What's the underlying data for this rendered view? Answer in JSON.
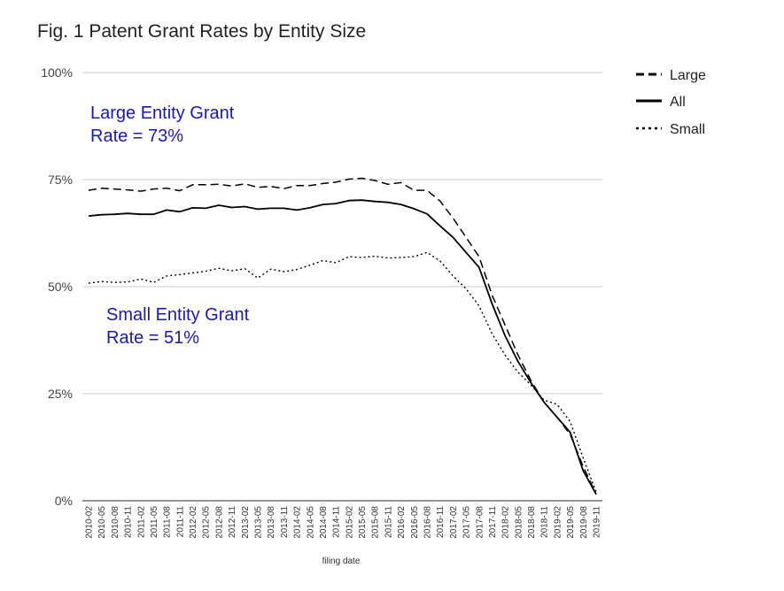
{
  "chart_data": {
    "type": "line",
    "title": "Fig. 1 Patent Grant Rates by Entity Size",
    "xlabel": "filing date",
    "ylabel": "",
    "ylim": [
      0,
      100
    ],
    "yticks": [
      "0%",
      "25%",
      "50%",
      "75%",
      "100%"
    ],
    "grid": true,
    "legend_position": "top-right",
    "x": [
      "2010-02",
      "2010-05",
      "2010-08",
      "2010-11",
      "2011-02",
      "2011-05",
      "2011-08",
      "2011-11",
      "2012-02",
      "2012-05",
      "2012-08",
      "2012-11",
      "2013-02",
      "2013-05",
      "2013-08",
      "2013-11",
      "2014-02",
      "2014-05",
      "2014-08",
      "2014-11",
      "2015-02",
      "2015-05",
      "2015-08",
      "2015-11",
      "2016-02",
      "2016-05",
      "2016-08",
      "2016-11",
      "2017-02",
      "2017-05",
      "2017-08",
      "2017-11",
      "2018-02",
      "2018-05",
      "2018-08",
      "2018-11",
      "2019-02",
      "2019-05",
      "2019-08",
      "2019-11"
    ],
    "series": [
      {
        "name": "Large",
        "style": "dashed",
        "color": "#000000",
        "values": [
          72.5,
          73,
          72.8,
          72.6,
          72.3,
          72.8,
          73,
          72.4,
          73.8,
          73.8,
          73.9,
          73.5,
          74,
          73.2,
          73.4,
          72.9,
          73.6,
          73.6,
          74.1,
          74.4,
          75.1,
          75.3,
          74.8,
          73.9,
          74.3,
          72.5,
          72.5,
          70,
          66,
          61.5,
          57,
          48,
          41,
          34,
          28,
          23,
          19.5,
          15.5,
          8,
          1.5
        ]
      },
      {
        "name": "All",
        "style": "solid",
        "color": "#000000",
        "values": [
          66.5,
          66.8,
          66.9,
          67.1,
          66.9,
          66.9,
          67.9,
          67.5,
          68.4,
          68.3,
          69,
          68.5,
          68.7,
          68.1,
          68.3,
          68.3,
          67.9,
          68.4,
          69.2,
          69.4,
          70.1,
          70.2,
          69.9,
          69.7,
          69.2,
          68.2,
          67,
          64.2,
          61.5,
          58,
          54.5,
          46,
          38.5,
          32.5,
          27.5,
          23,
          19.5,
          16,
          7,
          1.5
        ]
      },
      {
        "name": "Small",
        "style": "dotted",
        "color": "#000000",
        "values": [
          50.8,
          51.2,
          51,
          51.1,
          51.8,
          51,
          52.5,
          52.8,
          53.2,
          53.6,
          54.3,
          53.7,
          54.2,
          52,
          54.1,
          53.5,
          54,
          55,
          56.1,
          55.6,
          57,
          56.8,
          57.1,
          56.7,
          56.8,
          57,
          58,
          56,
          52.5,
          49.5,
          45.5,
          39,
          34,
          30,
          27,
          23.5,
          22.5,
          18.5,
          10,
          2
        ]
      }
    ],
    "annotations": [
      {
        "lines": [
          "Large Entity Grant",
          "Rate = 73%"
        ],
        "color": "#1a1aa8"
      },
      {
        "lines": [
          "Small Entity Grant",
          "Rate = 51%"
        ],
        "color": "#1a1aa8"
      }
    ]
  }
}
